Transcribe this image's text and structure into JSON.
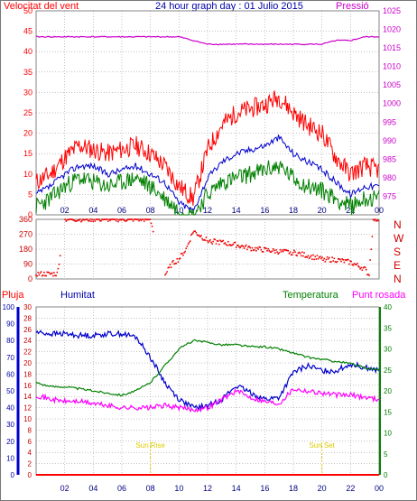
{
  "header": {
    "left_title": "Velocitat del vent",
    "center_title": "24 hour graph day : 01 Julio 2015",
    "right_title": "Pressió"
  },
  "lower_header": {
    "pluja": "Pluja",
    "humitat": "Humitat",
    "temperatura": "Temperatura",
    "punt_rosada": "Punt rosada"
  },
  "x_ticks": [
    "02",
    "04",
    "06",
    "08",
    "10",
    "12",
    "14",
    "16",
    "18",
    "20",
    "22",
    "00"
  ],
  "annotations": {
    "sunrise": "Sun Rise",
    "sunset": "Sun Set",
    "sunrise_hour": 8,
    "sunset_hour": 20
  },
  "colors": {
    "wind_gust": "#ff0000",
    "wind_avg": "#0000cc",
    "wind_min": "#008000",
    "pressure": "#cc00cc",
    "direction": "#ee0000",
    "humidity": "#0000cc",
    "temperature": "#008000",
    "dewpoint": "#ff00ff",
    "rain": "#ff0000",
    "sun": "#ddcc00",
    "grid": "#888888"
  },
  "chart_data": [
    {
      "type": "line",
      "title": "24 hour graph day : 01 Julio 2015",
      "ylabel_left": "Velocitat del vent",
      "ylabel_right": "Pressió",
      "x": [
        0,
        1,
        2,
        3,
        4,
        5,
        6,
        7,
        8,
        9,
        10,
        11,
        12,
        13,
        14,
        15,
        16,
        17,
        18,
        19,
        20,
        21,
        22,
        23,
        24
      ],
      "ylim_left": [
        0,
        50
      ],
      "yticks_left": [
        0,
        5,
        10,
        15,
        20,
        25,
        30,
        35,
        40,
        45,
        50
      ],
      "ylim_right": [
        970,
        1025
      ],
      "yticks_right": [
        975,
        980,
        985,
        990,
        995,
        1000,
        1005,
        1010,
        1015,
        1020,
        1025
      ],
      "series": [
        {
          "values_gust": [
            8,
            10,
            14,
            17,
            16,
            15,
            16,
            17,
            15,
            12,
            7,
            4,
            16,
            22,
            25,
            26,
            27,
            29,
            25,
            22,
            20,
            14,
            10,
            12,
            11
          ]
        },
        {
          "values_avg": [
            5,
            7,
            10,
            12,
            12,
            10,
            11,
            12,
            10,
            8,
            3,
            1,
            9,
            13,
            15,
            16,
            17,
            19,
            15,
            13,
            11,
            8,
            5,
            7,
            7
          ]
        },
        {
          "values_min": [
            2,
            4,
            7,
            9,
            8,
            7,
            8,
            9,
            7,
            4,
            1,
            0,
            5,
            8,
            9,
            10,
            11,
            12,
            9,
            7,
            6,
            4,
            2,
            4,
            4
          ]
        },
        {
          "values_pressure": [
            1018,
            1018,
            1018,
            1018,
            1018,
            1018,
            1018,
            1018,
            1018,
            1018,
            1018,
            1017,
            1016,
            1016,
            1016,
            1016,
            1016,
            1016,
            1016,
            1016,
            1016,
            1017,
            1017,
            1018,
            1018
          ]
        }
      ],
      "grid": true
    },
    {
      "type": "scatter",
      "ylabel_right": "N W S E N",
      "direction_labels": [
        "N",
        "W",
        "S",
        "E",
        "N"
      ],
      "ylim": [
        0,
        360
      ],
      "yticks": [
        0,
        90,
        180,
        270,
        360
      ],
      "x": [
        0,
        0.5,
        1,
        1.5,
        2,
        3,
        4,
        5,
        6,
        7,
        8,
        9,
        9.5,
        10,
        10.5,
        11,
        11.5,
        12,
        13,
        14,
        15,
        16,
        17,
        18,
        19,
        20,
        21,
        22,
        23,
        23.3,
        23.6,
        24
      ],
      "values": [
        30,
        30,
        30,
        30,
        360,
        360,
        360,
        360,
        360,
        360,
        360,
        20,
        90,
        120,
        180,
        290,
        260,
        230,
        220,
        205,
        185,
        175,
        165,
        160,
        140,
        120,
        115,
        100,
        60,
        20,
        360,
        360
      ]
    },
    {
      "type": "line",
      "ylabel_left_outer": "Pluja",
      "ylabel_left_inner": "Humitat",
      "ylabel_right": "Temperatura",
      "ylabel_right_outer": "Punt rosada",
      "x": [
        0,
        1,
        2,
        3,
        4,
        5,
        6,
        7,
        8,
        9,
        10,
        11,
        12,
        13,
        14,
        15,
        16,
        17,
        18,
        19,
        20,
        21,
        22,
        23,
        24
      ],
      "ylim_rain": [
        0,
        30
      ],
      "yticks_rain": [
        0,
        2,
        4,
        6,
        8,
        10,
        12,
        14,
        16,
        18,
        20,
        22,
        24,
        26,
        28,
        30
      ],
      "ylim_humidity": [
        0,
        100
      ],
      "yticks_humidity": [
        0,
        10,
        20,
        30,
        40,
        50,
        60,
        70,
        80,
        90,
        100
      ],
      "ylim_temperature": [
        0,
        40
      ],
      "yticks_temperature": [
        0,
        5,
        10,
        15,
        20,
        25,
        30,
        35,
        40
      ],
      "series": [
        {
          "values_humidity": [
            85,
            84,
            84,
            83,
            83,
            84,
            84,
            82,
            70,
            55,
            45,
            40,
            41,
            45,
            53,
            49,
            45,
            46,
            61,
            65,
            62,
            62,
            66,
            64,
            62
          ]
        },
        {
          "values_temperature": [
            22,
            21,
            21,
            20.5,
            20,
            19.5,
            19,
            20,
            22,
            26,
            30,
            32,
            31.5,
            31,
            31,
            30.5,
            30.5,
            30,
            29,
            28,
            27.5,
            27,
            26.5,
            25.5,
            25
          ]
        },
        {
          "values_dewpoint": [
            19,
            18,
            17.5,
            17.5,
            17,
            16.5,
            16,
            16,
            16,
            16.5,
            16,
            15.5,
            16,
            18,
            20,
            18.5,
            17.5,
            17,
            20.5,
            20,
            19.5,
            19,
            19,
            18.5,
            18
          ]
        },
        {
          "values_rain": [
            0,
            0,
            0,
            0,
            0,
            0,
            0,
            0,
            0,
            0,
            0,
            0,
            0,
            0,
            0,
            0,
            0,
            0,
            0,
            0,
            0,
            0,
            0,
            0,
            0
          ]
        }
      ],
      "grid": true
    }
  ]
}
